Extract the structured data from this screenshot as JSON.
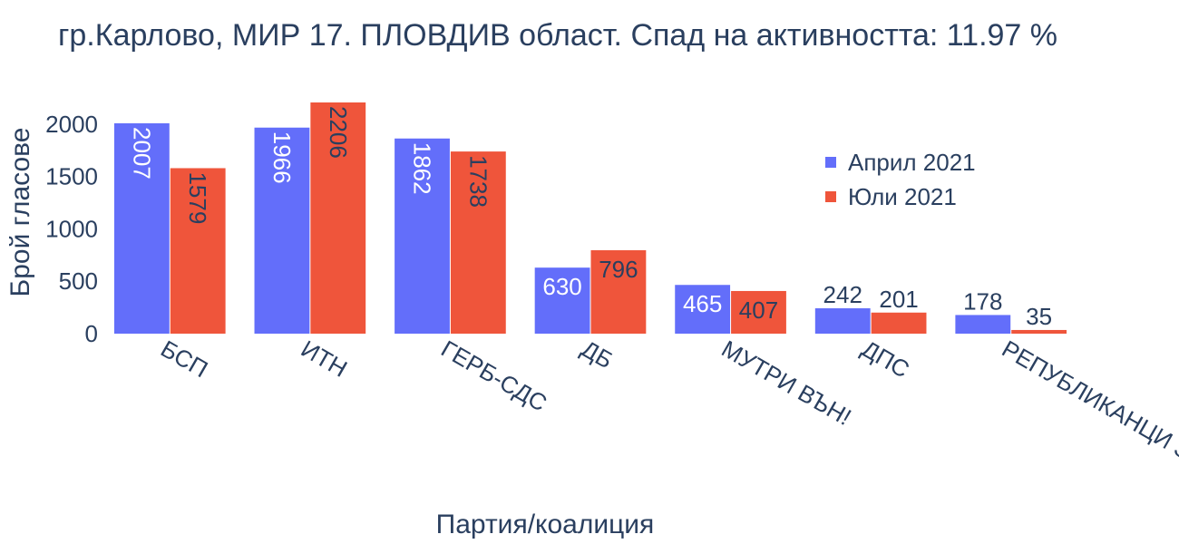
{
  "chart_data": {
    "type": "bar",
    "title": "гр.Карлово, МИР 17. ПЛОВДИВ област. Спад на активността: 11.97 %",
    "xlabel": "Партия/коалиция",
    "ylabel": "Брой гласове",
    "categories": [
      "БСП",
      "ИТН",
      "ГЕРБ-СДС",
      "ДБ",
      "МУТРИ ВЪН!",
      "ДПС",
      "РЕПУБЛИКАНЦИ ЗА БГ"
    ],
    "series": [
      {
        "name": "Април 2021",
        "color": "#636efa",
        "values": [
          2007,
          1966,
          1862,
          630,
          465,
          242,
          178
        ]
      },
      {
        "name": "Юли 2021",
        "color": "#ef553b",
        "values": [
          1579,
          2206,
          1738,
          796,
          407,
          201,
          35
        ]
      }
    ],
    "ylim": [
      0,
      2206
    ],
    "yticks": [
      0,
      500,
      1000,
      1500,
      2000
    ],
    "grid": false,
    "legend_position": "top-right"
  }
}
